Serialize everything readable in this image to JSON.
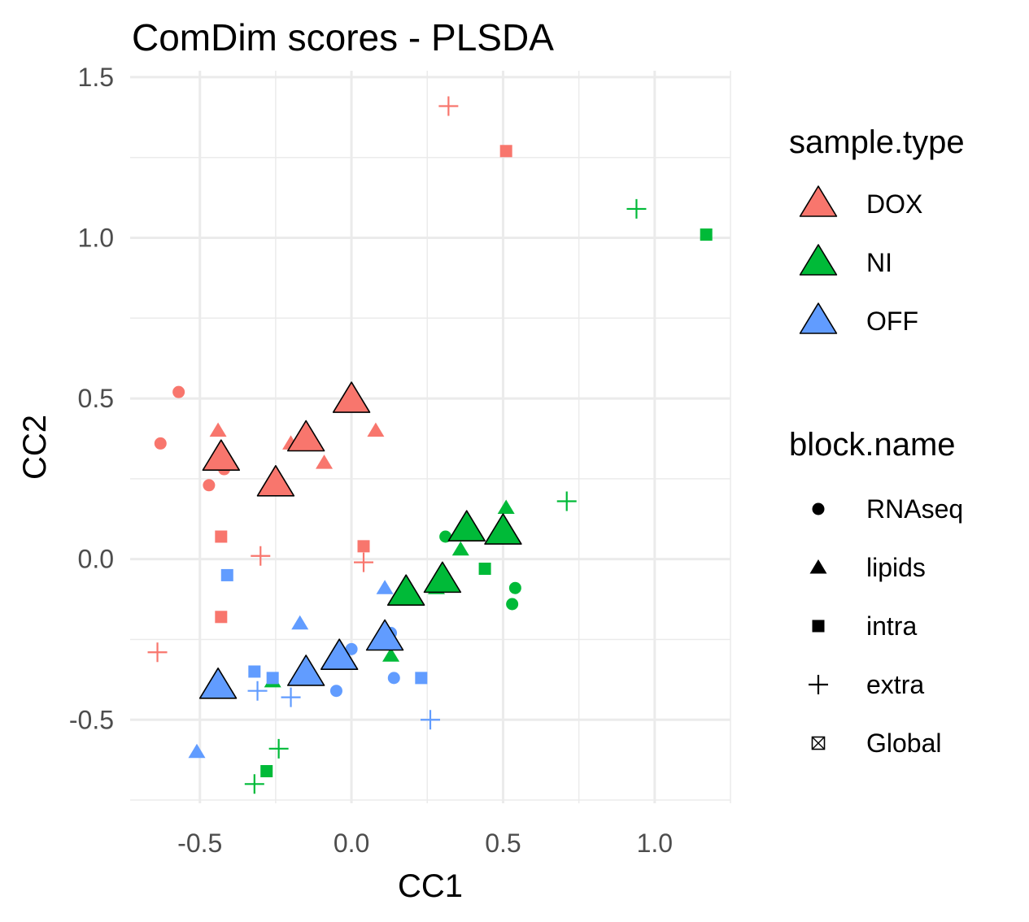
{
  "chart_data": {
    "type": "scatter",
    "title": "ComDim scores - PLSDA",
    "xlabel": "CC1",
    "ylabel": "CC2",
    "xlim": [
      -0.73,
      1.25
    ],
    "ylim": [
      -0.76,
      1.52
    ],
    "x_ticks": [
      -0.5,
      0.0,
      0.5,
      1.0
    ],
    "x_tick_labels": [
      "-0.5",
      "0.0",
      "0.5",
      "1.0"
    ],
    "y_ticks": [
      -0.5,
      0.0,
      0.5,
      1.0,
      1.5
    ],
    "y_tick_labels": [
      "-0.5",
      "0.0",
      "0.5",
      "1.0",
      "1.5"
    ],
    "grid": true,
    "legend_placement": "right",
    "colors": {
      "DOX": "#F8766D",
      "NI": "#00BA38",
      "OFF": "#619CFF"
    },
    "legends": [
      {
        "title": "sample.type",
        "entries": [
          {
            "label": "DOX",
            "color": "#F8766D",
            "shape": "big-triangle"
          },
          {
            "label": "NI",
            "color": "#00BA38",
            "shape": "big-triangle"
          },
          {
            "label": "OFF",
            "color": "#619CFF",
            "shape": "big-triangle"
          }
        ]
      },
      {
        "title": "block.name",
        "entries": [
          {
            "label": "RNAseq",
            "shape": "circle"
          },
          {
            "label": "lipids",
            "shape": "triangle"
          },
          {
            "label": "intra",
            "shape": "square"
          },
          {
            "label": "extra",
            "shape": "plus"
          },
          {
            "label": "Global",
            "shape": "boxed-x"
          }
        ]
      }
    ],
    "series": [
      {
        "sample_type": "DOX",
        "points": [
          {
            "block": "RNAseq",
            "x": -0.57,
            "y": 0.52
          },
          {
            "block": "RNAseq",
            "x": -0.63,
            "y": 0.36
          },
          {
            "block": "RNAseq",
            "x": -0.47,
            "y": 0.23
          },
          {
            "block": "RNAseq",
            "x": -0.42,
            "y": 0.28
          },
          {
            "block": "lipids",
            "x": -0.44,
            "y": 0.4
          },
          {
            "block": "lipids",
            "x": -0.2,
            "y": 0.36
          },
          {
            "block": "lipids",
            "x": -0.09,
            "y": 0.3
          },
          {
            "block": "lipids",
            "x": 0.08,
            "y": 0.4
          },
          {
            "block": "intra",
            "x": 0.51,
            "y": 1.27
          },
          {
            "block": "intra",
            "x": -0.43,
            "y": 0.07
          },
          {
            "block": "intra",
            "x": -0.43,
            "y": -0.18
          },
          {
            "block": "intra",
            "x": 0.04,
            "y": 0.04
          },
          {
            "block": "extra",
            "x": 0.32,
            "y": 1.41
          },
          {
            "block": "extra",
            "x": -0.3,
            "y": 0.01
          },
          {
            "block": "extra",
            "x": 0.04,
            "y": -0.01
          },
          {
            "block": "extra",
            "x": -0.64,
            "y": -0.29
          },
          {
            "block": "Global",
            "x": -0.43,
            "y": 0.32
          },
          {
            "block": "Global",
            "x": -0.15,
            "y": 0.38
          },
          {
            "block": "Global",
            "x": 0.0,
            "y": 0.5
          },
          {
            "block": "Global",
            "x": -0.25,
            "y": 0.24
          }
        ]
      },
      {
        "sample_type": "NI",
        "points": [
          {
            "block": "RNAseq",
            "x": 0.31,
            "y": 0.07
          },
          {
            "block": "RNAseq",
            "x": 0.54,
            "y": -0.09
          },
          {
            "block": "RNAseq",
            "x": 0.53,
            "y": -0.14
          },
          {
            "block": "lipids",
            "x": 0.51,
            "y": 0.16
          },
          {
            "block": "lipids",
            "x": 0.36,
            "y": 0.03
          },
          {
            "block": "lipids",
            "x": 0.28,
            "y": -0.09
          },
          {
            "block": "lipids",
            "x": 0.13,
            "y": -0.3
          },
          {
            "block": "lipids",
            "x": -0.26,
            "y": -0.38
          },
          {
            "block": "intra",
            "x": 1.17,
            "y": 1.01
          },
          {
            "block": "intra",
            "x": 0.44,
            "y": -0.03
          },
          {
            "block": "intra",
            "x": -0.28,
            "y": -0.66
          },
          {
            "block": "extra",
            "x": 0.94,
            "y": 1.09
          },
          {
            "block": "extra",
            "x": 0.71,
            "y": 0.18
          },
          {
            "block": "extra",
            "x": -0.24,
            "y": -0.59
          },
          {
            "block": "extra",
            "x": -0.32,
            "y": -0.7
          },
          {
            "block": "Global",
            "x": 0.38,
            "y": 0.1
          },
          {
            "block": "Global",
            "x": 0.5,
            "y": 0.09
          },
          {
            "block": "Global",
            "x": 0.18,
            "y": -0.1
          },
          {
            "block": "Global",
            "x": 0.3,
            "y": -0.06
          }
        ]
      },
      {
        "sample_type": "OFF",
        "points": [
          {
            "block": "RNAseq",
            "x": 0.0,
            "y": -0.28
          },
          {
            "block": "RNAseq",
            "x": 0.13,
            "y": -0.23
          },
          {
            "block": "RNAseq",
            "x": 0.14,
            "y": -0.37
          },
          {
            "block": "RNAseq",
            "x": -0.05,
            "y": -0.41
          },
          {
            "block": "lipids",
            "x": 0.11,
            "y": -0.09
          },
          {
            "block": "lipids",
            "x": -0.17,
            "y": -0.2
          },
          {
            "block": "lipids",
            "x": -0.51,
            "y": -0.6
          },
          {
            "block": "intra",
            "x": -0.41,
            "y": -0.05
          },
          {
            "block": "intra",
            "x": -0.32,
            "y": -0.35
          },
          {
            "block": "intra",
            "x": -0.26,
            "y": -0.37
          },
          {
            "block": "intra",
            "x": 0.23,
            "y": -0.37
          },
          {
            "block": "extra",
            "x": -0.31,
            "y": -0.41
          },
          {
            "block": "extra",
            "x": -0.2,
            "y": -0.43
          },
          {
            "block": "extra",
            "x": 0.26,
            "y": -0.5
          },
          {
            "block": "Global",
            "x": -0.44,
            "y": -0.39
          },
          {
            "block": "Global",
            "x": -0.15,
            "y": -0.35
          },
          {
            "block": "Global",
            "x": -0.04,
            "y": -0.3
          },
          {
            "block": "Global",
            "x": 0.11,
            "y": -0.24
          }
        ]
      }
    ]
  }
}
